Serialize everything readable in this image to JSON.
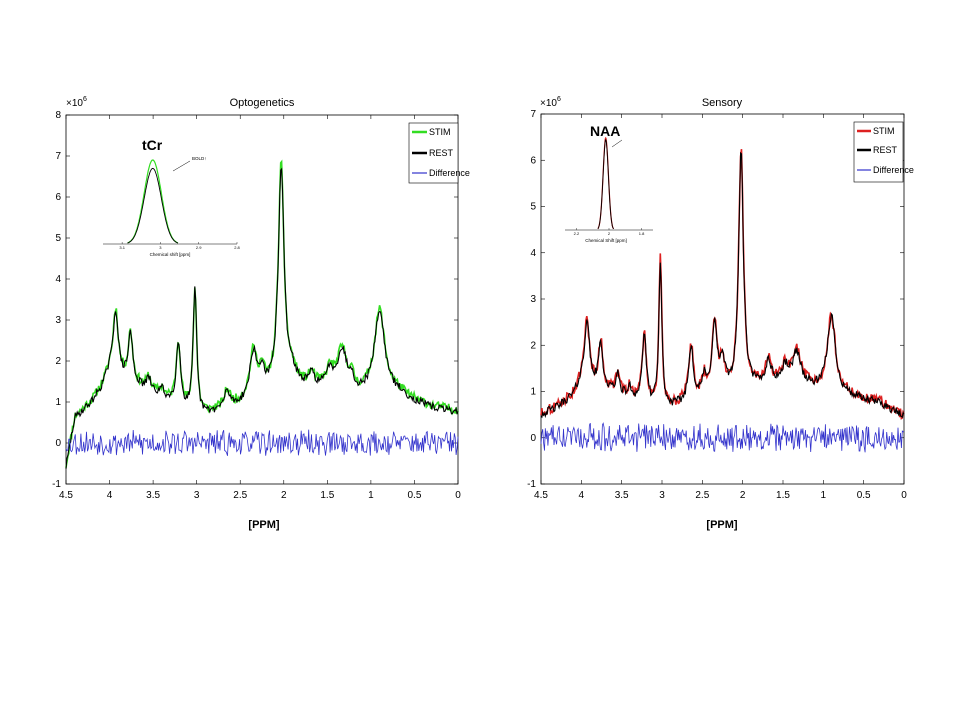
{
  "colors": {
    "stim_green": "#33dd22",
    "stim_red": "#dd2020",
    "rest": "#000000",
    "difference": "#3333cc"
  },
  "chart_data": [
    {
      "id": "optogenetics",
      "type": "line",
      "title": "Optogenetics",
      "xlabel": "[PPM]",
      "ylabel": "",
      "y_exponent_label": "×10",
      "y_exponent_power": "6",
      "xlim": [
        4.5,
        0
      ],
      "ylim": [
        -1,
        8
      ],
      "x_ticks": [
        "4.5",
        "4",
        "3.5",
        "3",
        "2.5",
        "2",
        "1.5",
        "1",
        "0.5",
        "0"
      ],
      "y_ticks": [
        "-1",
        "0",
        "1",
        "2",
        "3",
        "4",
        "5",
        "6",
        "7",
        "8"
      ],
      "legend": [
        "STIM",
        "REST",
        "Difference"
      ],
      "series": [
        {
          "name": "STIM",
          "color": "#33dd22"
        },
        {
          "name": "REST",
          "color": "#000000"
        },
        {
          "name": "Difference",
          "color": "#3333cc"
        }
      ],
      "baseline": [
        [
          4.5,
          -0.6
        ],
        [
          4.4,
          0.6
        ],
        [
          4.3,
          0.8
        ],
        [
          4.2,
          1.0
        ],
        [
          4.1,
          1.3
        ],
        [
          4.0,
          1.7
        ],
        [
          3.5,
          1.2
        ],
        [
          3.0,
          0.6
        ],
        [
          2.5,
          0.9
        ],
        [
          2.0,
          1.3
        ],
        [
          1.5,
          1.3
        ],
        [
          1.2,
          1.1
        ],
        [
          1.0,
          1.2
        ],
        [
          0.7,
          1.2
        ],
        [
          0.5,
          1.0
        ],
        [
          0.3,
          0.85
        ],
        [
          0.0,
          0.75
        ]
      ],
      "peaks": [
        {
          "ppm": 3.93,
          "height": 1.6,
          "width": 0.035
        },
        {
          "ppm": 3.76,
          "height": 1.2,
          "width": 0.03
        },
        {
          "ppm": 3.55,
          "height": 0.3,
          "width": 0.03
        },
        {
          "ppm": 3.4,
          "height": 0.2,
          "width": 0.03
        },
        {
          "ppm": 3.21,
          "height": 1.6,
          "width": 0.03
        },
        {
          "ppm": 3.02,
          "height": 3.1,
          "width": 0.025
        },
        {
          "ppm": 2.65,
          "height": 0.4,
          "width": 0.04
        },
        {
          "ppm": 2.35,
          "height": 1.1,
          "width": 0.05
        },
        {
          "ppm": 2.25,
          "height": 0.5,
          "width": 0.04
        },
        {
          "ppm": 2.03,
          "height": 5.4,
          "width": 0.04
        },
        {
          "ppm": 1.9,
          "height": 0.3,
          "width": 0.06
        },
        {
          "ppm": 1.68,
          "height": 0.3,
          "width": 0.04
        },
        {
          "ppm": 1.47,
          "height": 0.4,
          "width": 0.04
        },
        {
          "ppm": 1.33,
          "height": 1.0,
          "width": 0.07
        },
        {
          "ppm": 1.22,
          "height": 0.3,
          "width": 0.04
        },
        {
          "ppm": 0.9,
          "height": 2.0,
          "width": 0.07
        }
      ],
      "inset": {
        "label": "tCr",
        "annotation": "BOLD↑",
        "xlabel": "Chemical shift [ppm]",
        "x_ticks": [
          "3.1",
          "3",
          "2.9",
          "2.8"
        ],
        "peak_center": 3.02,
        "stim_peak": 1.0,
        "rest_peak": 0.9
      }
    },
    {
      "id": "sensory",
      "type": "line",
      "title": "Sensory",
      "xlabel": "[PPM]",
      "ylabel": "",
      "y_exponent_label": "×10",
      "y_exponent_power": "6",
      "xlim": [
        4.5,
        0
      ],
      "ylim": [
        -1,
        7
      ],
      "x_ticks": [
        "4.5",
        "4",
        "3.5",
        "3",
        "2.5",
        "2",
        "1.5",
        "1",
        "0.5",
        "0"
      ],
      "y_ticks": [
        "-1",
        "0",
        "1",
        "2",
        "3",
        "4",
        "5",
        "6",
        "7"
      ],
      "legend": [
        "STIM",
        "REST",
        "Difference"
      ],
      "series": [
        {
          "name": "STIM",
          "color": "#dd2020"
        },
        {
          "name": "REST",
          "color": "#000000"
        },
        {
          "name": "Difference",
          "color": "#3333cc"
        }
      ],
      "baseline": [
        [
          4.5,
          0.5
        ],
        [
          4.3,
          0.65
        ],
        [
          4.1,
          0.9
        ],
        [
          4.0,
          1.2
        ],
        [
          3.5,
          0.9
        ],
        [
          3.0,
          0.6
        ],
        [
          2.5,
          0.8
        ],
        [
          2.0,
          1.0
        ],
        [
          1.5,
          1.2
        ],
        [
          1.0,
          1.0
        ],
        [
          0.7,
          0.9
        ],
        [
          0.5,
          0.8
        ],
        [
          0.3,
          0.75
        ],
        [
          0.0,
          0.45
        ]
      ],
      "peaks": [
        {
          "ppm": 3.93,
          "height": 1.4,
          "width": 0.035
        },
        {
          "ppm": 3.76,
          "height": 1.0,
          "width": 0.03
        },
        {
          "ppm": 3.55,
          "height": 0.4,
          "width": 0.03
        },
        {
          "ppm": 3.4,
          "height": 0.2,
          "width": 0.03
        },
        {
          "ppm": 3.22,
          "height": 1.5,
          "width": 0.03
        },
        {
          "ppm": 3.02,
          "height": 3.2,
          "width": 0.022
        },
        {
          "ppm": 2.64,
          "height": 1.2,
          "width": 0.035
        },
        {
          "ppm": 2.48,
          "height": 0.4,
          "width": 0.03
        },
        {
          "ppm": 2.35,
          "height": 1.5,
          "width": 0.04
        },
        {
          "ppm": 2.25,
          "height": 0.6,
          "width": 0.04
        },
        {
          "ppm": 2.02,
          "height": 5.2,
          "width": 0.035
        },
        {
          "ppm": 1.68,
          "height": 0.5,
          "width": 0.04
        },
        {
          "ppm": 1.47,
          "height": 0.3,
          "width": 0.04
        },
        {
          "ppm": 1.33,
          "height": 0.7,
          "width": 0.06
        },
        {
          "ppm": 0.9,
          "height": 1.65,
          "width": 0.06
        }
      ],
      "inset": {
        "label": "NAA",
        "annotation": "",
        "xlabel": "Chemical Shift [ppm]",
        "x_ticks": [
          "2.2",
          "2",
          "1.8"
        ],
        "peak_center": 2.02,
        "stim_peak": 1.0,
        "rest_peak": 0.98
      }
    }
  ]
}
